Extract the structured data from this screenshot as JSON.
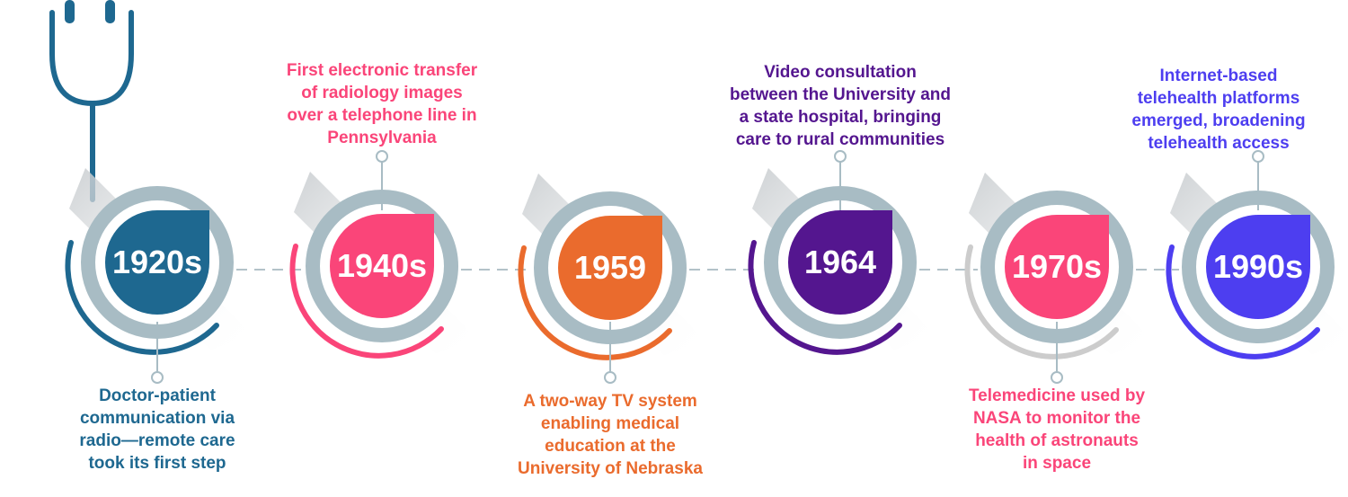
{
  "timeline": [
    {
      "year": "1920s",
      "caption": "Doctor-patient\ncommunication via\nradio—remote care\ntook its first step",
      "color": "#1e6890",
      "position": "below"
    },
    {
      "year": "1940s",
      "caption": "First electronic transfer\nof radiology images\nover a telephone line in\nPennsylvania",
      "color": "#fa4579",
      "position": "above"
    },
    {
      "year": "1959",
      "caption": "A two-way TV system\nenabling medical\neducation at the\nUniversity of Nebraska",
      "color": "#ea6b2d",
      "position": "below"
    },
    {
      "year": "1964",
      "caption": "Video consultation\nbetween the University and\na state hospital, bringing\ncare to rural communities",
      "color": "#54168f",
      "position": "above"
    },
    {
      "year": "1970s",
      "caption": "Telemedicine used by\nNASA to monitor the\nhealth of astronauts\nin space",
      "color": "#fa4579",
      "arc_color": "#cccccc",
      "position": "below"
    },
    {
      "year": "1990s",
      "caption": "Internet-based\ntelehealth platforms\nemerged, broadening\ntelehealth access",
      "color": "#4d3ef0",
      "position": "above"
    }
  ],
  "icons": {
    "decoration": "stethoscope-icon"
  },
  "ring_color": "#a8bcc4",
  "connector_color": "#b3c2c9"
}
